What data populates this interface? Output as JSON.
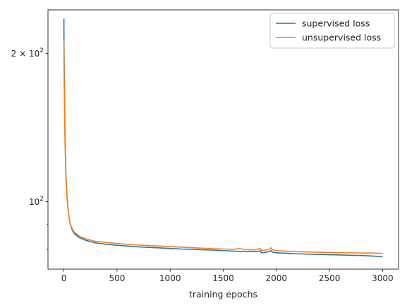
{
  "chart_data": {
    "type": "line",
    "title": "",
    "xlabel": "training epochs",
    "ylabel": "",
    "yscale": "log",
    "xlim": [
      -150,
      3150
    ],
    "ylim": [
      73,
      245
    ],
    "x_ticks": [
      0,
      500,
      1000,
      1500,
      2000,
      2500,
      3000
    ],
    "x_tick_labels": [
      "0",
      "500",
      "1000",
      "1500",
      "2000",
      "2500",
      "3000"
    ],
    "y_major_ticks": [
      100,
      200
    ],
    "y_major_tick_labels": [
      "10",
      "2 × 10"
    ],
    "y_major_tick_exponents": [
      "2",
      "2"
    ],
    "y_minor_ticks": [
      80,
      90
    ],
    "grid": false,
    "legend_position": "top-right",
    "series": [
      {
        "name": "supervised loss",
        "color": "#1f77b4",
        "points": [
          [
            0,
            235
          ],
          [
            1,
            212
          ],
          [
            5,
            170
          ],
          [
            10,
            138
          ],
          [
            20,
            112
          ],
          [
            30,
            102
          ],
          [
            40,
            96
          ],
          [
            50,
            92.5
          ],
          [
            60,
            90
          ],
          [
            80,
            87.5
          ],
          [
            100,
            86
          ],
          [
            150,
            84.5
          ],
          [
            200,
            83.6
          ],
          [
            250,
            83
          ],
          [
            300,
            82.5
          ],
          [
            400,
            82
          ],
          [
            500,
            81.6
          ],
          [
            600,
            81.3
          ],
          [
            700,
            81
          ],
          [
            800,
            80.8
          ],
          [
            900,
            80.6
          ],
          [
            1000,
            80.4
          ],
          [
            1100,
            80.2
          ],
          [
            1200,
            80.1
          ],
          [
            1300,
            79.9
          ],
          [
            1400,
            79.8
          ],
          [
            1500,
            79.6
          ],
          [
            1600,
            79.4
          ],
          [
            1700,
            79.3
          ],
          [
            1800,
            79.2
          ],
          [
            1850,
            79.5
          ],
          [
            1860,
            78.8
          ],
          [
            1900,
            79
          ],
          [
            1940,
            79.3
          ],
          [
            1950,
            79.6
          ],
          [
            1960,
            79.1
          ],
          [
            2000,
            78.8
          ],
          [
            2100,
            78.6
          ],
          [
            2200,
            78.4
          ],
          [
            2300,
            78.3
          ],
          [
            2400,
            78.2
          ],
          [
            2500,
            78.1
          ],
          [
            2600,
            78
          ],
          [
            2700,
            77.9
          ],
          [
            2800,
            77.8
          ],
          [
            2900,
            77.6
          ],
          [
            3000,
            77.4
          ]
        ]
      },
      {
        "name": "unsupervised loss",
        "color": "#ff7f0e",
        "points": [
          [
            0,
            212
          ],
          [
            1,
            190
          ],
          [
            5,
            160
          ],
          [
            10,
            133
          ],
          [
            20,
            110
          ],
          [
            30,
            101
          ],
          [
            40,
            96
          ],
          [
            50,
            92.5
          ],
          [
            60,
            90.2
          ],
          [
            80,
            88
          ],
          [
            100,
            86.7
          ],
          [
            150,
            85
          ],
          [
            200,
            84.2
          ],
          [
            250,
            83.6
          ],
          [
            300,
            83.1
          ],
          [
            400,
            82.7
          ],
          [
            500,
            82.3
          ],
          [
            600,
            82
          ],
          [
            700,
            81.7
          ],
          [
            800,
            81.5
          ],
          [
            900,
            81.3
          ],
          [
            1000,
            81.1
          ],
          [
            1100,
            80.9
          ],
          [
            1200,
            80.7
          ],
          [
            1300,
            80.5
          ],
          [
            1400,
            80.3
          ],
          [
            1500,
            80.2
          ],
          [
            1600,
            80.1
          ],
          [
            1650,
            80.4
          ],
          [
            1700,
            80
          ],
          [
            1800,
            79.9
          ],
          [
            1850,
            80.4
          ],
          [
            1860,
            79.7
          ],
          [
            1900,
            79.8
          ],
          [
            1940,
            80.2
          ],
          [
            1950,
            80.7
          ],
          [
            1960,
            80
          ],
          [
            2000,
            79.6
          ],
          [
            2100,
            79.4
          ],
          [
            2200,
            79.2
          ],
          [
            2300,
            79.1
          ],
          [
            2400,
            79
          ],
          [
            2500,
            78.9
          ],
          [
            2600,
            78.8
          ],
          [
            2700,
            78.8
          ],
          [
            2800,
            78.7
          ],
          [
            2900,
            78.7
          ],
          [
            3000,
            78.6
          ]
        ]
      }
    ]
  }
}
